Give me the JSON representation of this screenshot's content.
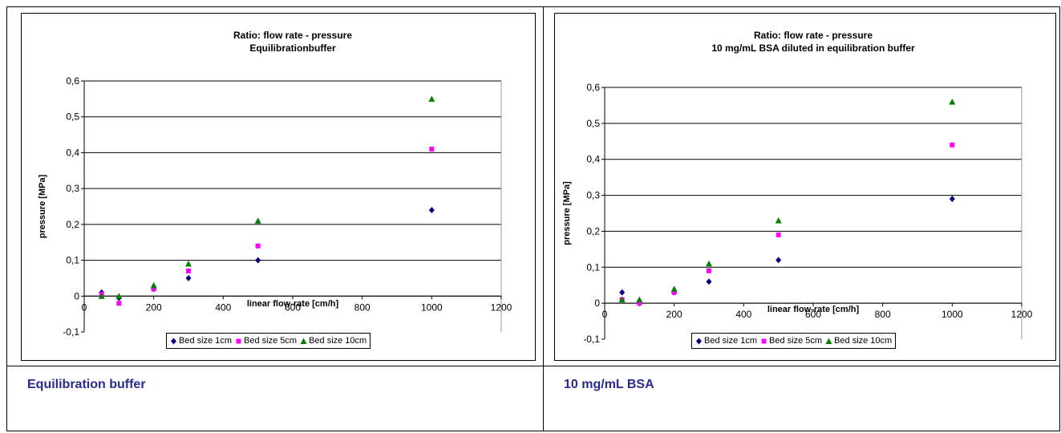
{
  "captions": [
    "Equilibration buffer",
    "10 mg/mL BSA"
  ],
  "chart_data": [
    {
      "type": "scatter",
      "title": [
        "Ratio: flow rate - pressure",
        "Equilibrationbuffer"
      ],
      "xlabel": "linear flow-rate [cm/h]",
      "ylabel": "pressure [MPa]",
      "xlim": [
        0,
        1200
      ],
      "ylim": [
        -0.1,
        0.6
      ],
      "x_ticks": [
        "0",
        "200",
        "400",
        "600",
        "800",
        "1000",
        "1200"
      ],
      "y_ticks": [
        "-0,1",
        "0",
        "0,1",
        "0,2",
        "0,3",
        "0,4",
        "0,5",
        "0,6"
      ],
      "grid": "horizontal",
      "legend_position": "bottom",
      "series": [
        {
          "name": "Bed size 1cm",
          "marker": "diamond",
          "color": "#000080",
          "points": [
            [
              50,
              0.01
            ],
            [
              100,
              -0.005
            ],
            [
              200,
              0.02
            ],
            [
              300,
              0.05
            ],
            [
              500,
              0.1
            ],
            [
              1000,
              0.24
            ]
          ]
        },
        {
          "name": "Bed size 5cm",
          "marker": "square",
          "color": "#ff00ff",
          "points": [
            [
              50,
              0.005
            ],
            [
              100,
              -0.02
            ],
            [
              200,
              0.02
            ],
            [
              300,
              0.07
            ],
            [
              500,
              0.14
            ],
            [
              1000,
              0.41
            ]
          ]
        },
        {
          "name": "Bed size 10cm",
          "marker": "triangle",
          "color": "#008000",
          "points": [
            [
              50,
              0.0
            ],
            [
              100,
              0.0
            ],
            [
              200,
              0.03
            ],
            [
              300,
              0.09
            ],
            [
              500,
              0.21
            ],
            [
              1000,
              0.55
            ]
          ]
        }
      ]
    },
    {
      "type": "scatter",
      "title": [
        "Ratio: flow rate - pressure",
        "10 mg/mL BSA diluted in equilibration buffer"
      ],
      "xlabel": "linear flow-rate [cm/h]",
      "ylabel": "pressure [MPa]",
      "xlim": [
        0,
        1200
      ],
      "ylim": [
        -0.1,
        0.6
      ],
      "x_ticks": [
        "0",
        "200",
        "400",
        "600",
        "800",
        "1000",
        "1200"
      ],
      "y_ticks": [
        "-0,1",
        "0",
        "0,1",
        "0,2",
        "0,3",
        "0,4",
        "0,5",
        "0,6"
      ],
      "grid": "horizontal",
      "legend_position": "bottom",
      "series": [
        {
          "name": "Bed size 1cm",
          "marker": "diamond",
          "color": "#000080",
          "points": [
            [
              50,
              0.03
            ],
            [
              100,
              0.0
            ],
            [
              200,
              0.03
            ],
            [
              300,
              0.06
            ],
            [
              500,
              0.12
            ],
            [
              1000,
              0.29
            ]
          ]
        },
        {
          "name": "Bed size 5cm",
          "marker": "square",
          "color": "#ff00ff",
          "points": [
            [
              50,
              0.01
            ],
            [
              100,
              0.0
            ],
            [
              200,
              0.03
            ],
            [
              300,
              0.09
            ],
            [
              500,
              0.19
            ],
            [
              1000,
              0.44
            ]
          ]
        },
        {
          "name": "Bed size 10cm",
          "marker": "triangle",
          "color": "#008000",
          "points": [
            [
              50,
              0.01
            ],
            [
              100,
              0.01
            ],
            [
              200,
              0.04
            ],
            [
              300,
              0.11
            ],
            [
              500,
              0.23
            ],
            [
              1000,
              0.56
            ]
          ]
        }
      ]
    }
  ]
}
